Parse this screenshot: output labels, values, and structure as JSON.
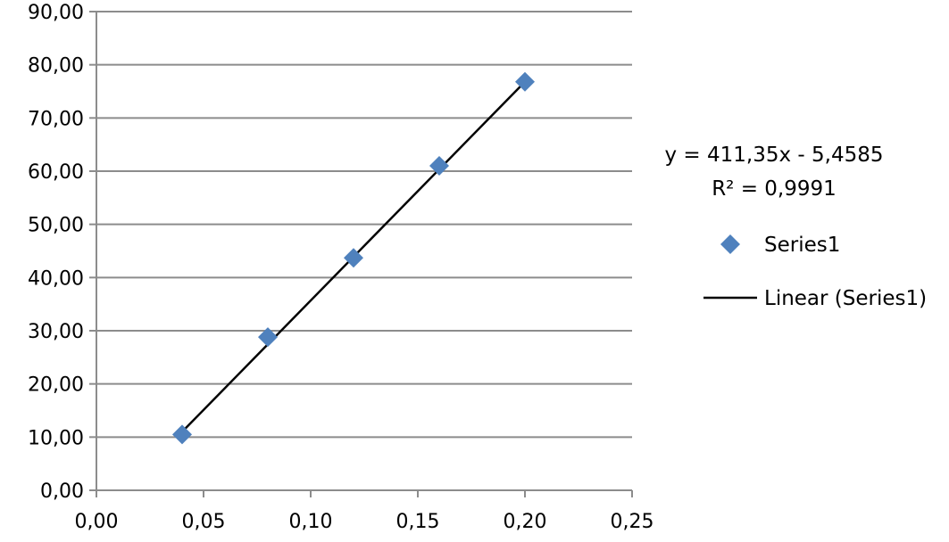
{
  "chart_data": {
    "type": "scatter",
    "title": "",
    "xlabel": "",
    "ylabel": "",
    "xlim": [
      0,
      0.25
    ],
    "ylim": [
      0,
      90
    ],
    "x_ticks": [
      "0,00",
      "0,05",
      "0,10",
      "0,15",
      "0,20",
      "0,25"
    ],
    "y_ticks": [
      "0,00",
      "10,00",
      "20,00",
      "30,00",
      "40,00",
      "50,00",
      "60,00",
      "70,00",
      "80,00",
      "90,00"
    ],
    "grid": "horizontal",
    "legend_position": "right",
    "series": [
      {
        "name": "Series1",
        "marker": "diamond",
        "color": "#4F81BD",
        "x": [
          0.04,
          0.08,
          0.12,
          0.16,
          0.2
        ],
        "y": [
          10.5,
          28.8,
          43.7,
          61.0,
          76.8
        ]
      }
    ],
    "trendline": {
      "name": "Linear (Series1)",
      "type": "linear",
      "color": "#000000",
      "slope": 411.35,
      "intercept": -5.4585,
      "equation": "y = 411,35x - 5,4585",
      "r_squared": "R² = 0,9991"
    }
  }
}
